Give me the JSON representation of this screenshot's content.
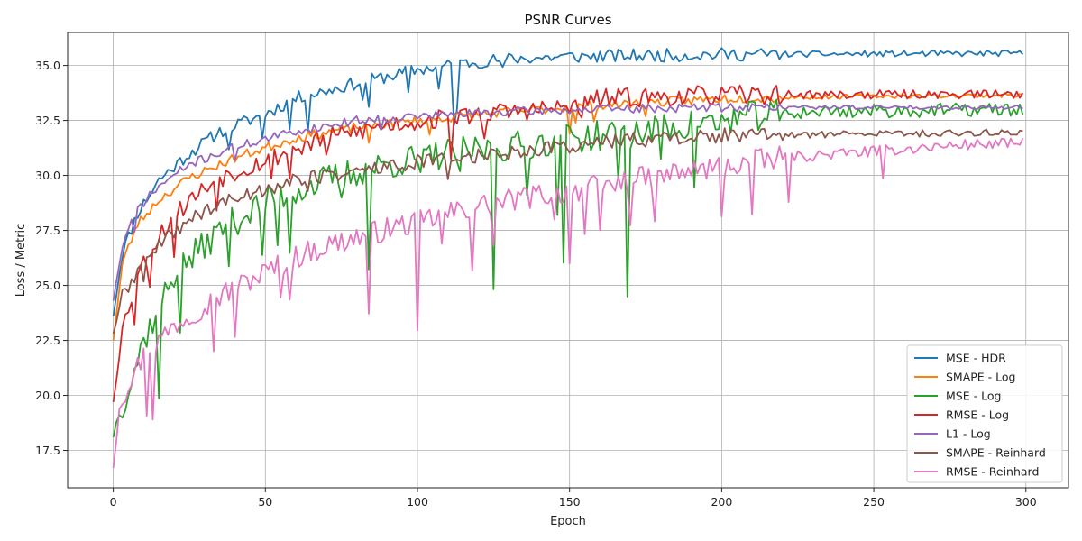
{
  "chart_data": {
    "type": "line",
    "title": "PSNR Curves",
    "xlabel": "Epoch",
    "ylabel": "Loss / Metric",
    "xlim": [
      -15,
      314
    ],
    "ylim": [
      15.8,
      36.5
    ],
    "xticks": [
      0,
      50,
      100,
      150,
      200,
      250,
      300
    ],
    "yticks": [
      17.5,
      20.0,
      22.5,
      25.0,
      27.5,
      30.0,
      32.5,
      35.0
    ],
    "grid": true,
    "legend_position": "lower-right",
    "x_range": [
      0,
      299
    ],
    "series": [
      {
        "name": "MSE - HDR",
        "color": "#1f77b4",
        "knots": [
          [
            0,
            23.6
          ],
          [
            3,
            26.5
          ],
          [
            8,
            28.3
          ],
          [
            15,
            29.8
          ],
          [
            25,
            31.0
          ],
          [
            35,
            32.0
          ],
          [
            50,
            32.8
          ],
          [
            60,
            33.5
          ],
          [
            80,
            34.2
          ],
          [
            100,
            34.8
          ],
          [
            115,
            35.1
          ],
          [
            130,
            35.3
          ],
          [
            150,
            35.4
          ],
          [
            200,
            35.5
          ],
          [
            299,
            35.55
          ]
        ],
        "noise": 0.3,
        "spikes": [
          [
            38,
            -1.2
          ],
          [
            49,
            -1.0
          ],
          [
            58,
            -1.2
          ],
          [
            64,
            -1.4
          ],
          [
            82,
            -1.0
          ],
          [
            84,
            -1.1
          ],
          [
            97,
            -1.0
          ],
          [
            107,
            -1.1
          ],
          [
            112,
            -2.8
          ],
          [
            113,
            -1.8
          ],
          [
            128,
            -0.6
          ]
        ],
        "seed": 11
      },
      {
        "name": "SMAPE - Log",
        "color": "#ff7f0e",
        "knots": [
          [
            0,
            22.5
          ],
          [
            3,
            26.0
          ],
          [
            8,
            27.8
          ],
          [
            15,
            28.9
          ],
          [
            25,
            29.9
          ],
          [
            40,
            30.8
          ],
          [
            60,
            31.7
          ],
          [
            80,
            32.2
          ],
          [
            100,
            32.5
          ],
          [
            130,
            32.9
          ],
          [
            150,
            33.1
          ],
          [
            200,
            33.5
          ],
          [
            250,
            33.6
          ],
          [
            299,
            33.65
          ]
        ],
        "noise": 0.22,
        "spikes": [
          [
            84,
            -1.0
          ],
          [
            104,
            -0.8
          ],
          [
            150,
            -1.0
          ],
          [
            152,
            -0.8
          ],
          [
            158,
            -0.5
          ],
          [
            175,
            -0.4
          ]
        ],
        "seed": 23
      },
      {
        "name": "MSE - Log",
        "color": "#2ca02c",
        "knots": [
          [
            0,
            18.1
          ],
          [
            2,
            19.3
          ],
          [
            5,
            20.3
          ],
          [
            10,
            22.5
          ],
          [
            20,
            25.5
          ],
          [
            35,
            27.5
          ],
          [
            50,
            28.8
          ],
          [
            70,
            29.8
          ],
          [
            90,
            30.5
          ],
          [
            110,
            31.0
          ],
          [
            130,
            31.3
          ],
          [
            150,
            31.7
          ],
          [
            170,
            31.9
          ],
          [
            190,
            32.3
          ],
          [
            210,
            32.7
          ],
          [
            230,
            32.9
          ],
          [
            299,
            33.0
          ]
        ],
        "noise": 0.7,
        "spikes": [
          [
            15,
            -4.5
          ],
          [
            22,
            -2.5
          ],
          [
            38,
            -1.5
          ],
          [
            49,
            -2.5
          ],
          [
            54,
            -2.0
          ],
          [
            58,
            -2.5
          ],
          [
            75,
            -1.5
          ],
          [
            84,
            -4.5
          ],
          [
            101,
            -1.2
          ],
          [
            114,
            -1.5
          ],
          [
            125,
            -6.0
          ],
          [
            136,
            -2.5
          ],
          [
            146,
            -4.0
          ],
          [
            148,
            -5.0
          ],
          [
            166,
            -1.5
          ],
          [
            169,
            -7.5
          ],
          [
            180,
            -1.0
          ],
          [
            191,
            -2.5
          ],
          [
            199,
            -0.6
          ]
        ],
        "seed": 37
      },
      {
        "name": "RMSE - Log",
        "color": "#d62728",
        "knots": [
          [
            0,
            19.7
          ],
          [
            3,
            23.0
          ],
          [
            8,
            25.5
          ],
          [
            15,
            27.3
          ],
          [
            25,
            28.9
          ],
          [
            35,
            29.9
          ],
          [
            50,
            30.7
          ],
          [
            70,
            31.7
          ],
          [
            90,
            32.3
          ],
          [
            110,
            32.6
          ],
          [
            130,
            32.9
          ],
          [
            150,
            33.1
          ],
          [
            160,
            33.5
          ],
          [
            200,
            33.65
          ],
          [
            299,
            33.7
          ]
        ],
        "noise": 0.45,
        "spikes": [
          [
            7,
            -1.5
          ],
          [
            12,
            -1.5
          ],
          [
            20,
            -1.5
          ],
          [
            34,
            -1.0
          ],
          [
            52,
            -1.0
          ],
          [
            58,
            -1.0
          ],
          [
            70,
            -0.8
          ],
          [
            111,
            -1.5
          ],
          [
            122,
            -0.8
          ],
          [
            154,
            -1.0
          ]
        ],
        "seed": 53
      },
      {
        "name": "L1 - Log",
        "color": "#9467bd",
        "knots": [
          [
            0,
            24.3
          ],
          [
            3,
            26.8
          ],
          [
            8,
            28.5
          ],
          [
            15,
            29.5
          ],
          [
            25,
            30.5
          ],
          [
            40,
            31.3
          ],
          [
            60,
            32.0
          ],
          [
            80,
            32.5
          ],
          [
            100,
            32.7
          ],
          [
            130,
            32.9
          ],
          [
            160,
            33.0
          ],
          [
            200,
            33.1
          ],
          [
            299,
            33.1
          ]
        ],
        "noise": 0.2,
        "spikes": [
          [
            7,
            -0.8
          ],
          [
            40,
            -0.5
          ],
          [
            88,
            -0.4
          ]
        ],
        "seed": 71
      },
      {
        "name": "SMAPE - Reinhard",
        "color": "#8c564b",
        "knots": [
          [
            0,
            22.8
          ],
          [
            3,
            24.5
          ],
          [
            10,
            26.0
          ],
          [
            20,
            27.5
          ],
          [
            30,
            28.4
          ],
          [
            45,
            29.2
          ],
          [
            60,
            29.8
          ],
          [
            80,
            30.2
          ],
          [
            100,
            30.6
          ],
          [
            120,
            30.9
          ],
          [
            140,
            31.2
          ],
          [
            160,
            31.5
          ],
          [
            180,
            31.7
          ],
          [
            200,
            31.8
          ],
          [
            250,
            31.9
          ],
          [
            299,
            31.95
          ]
        ],
        "noise": 0.35,
        "spikes": [
          [
            10,
            -0.6
          ],
          [
            64,
            -0.5
          ],
          [
            98,
            -0.5
          ],
          [
            110,
            -0.6
          ],
          [
            220,
            -0.3
          ]
        ],
        "seed": 89
      },
      {
        "name": "RMSE - Reinhard",
        "color": "#e377c2",
        "knots": [
          [
            0,
            16.7
          ],
          [
            2,
            19.5
          ],
          [
            5,
            20.6
          ],
          [
            10,
            21.8
          ],
          [
            20,
            23.2
          ],
          [
            30,
            24.1
          ],
          [
            40,
            24.9
          ],
          [
            50,
            25.6
          ],
          [
            60,
            26.3
          ],
          [
            70,
            26.8
          ],
          [
            80,
            27.2
          ],
          [
            100,
            27.9
          ],
          [
            120,
            28.6
          ],
          [
            140,
            29.1
          ],
          [
            160,
            29.5
          ],
          [
            180,
            30.0
          ],
          [
            200,
            30.4
          ],
          [
            220,
            30.8
          ],
          [
            240,
            31.0
          ],
          [
            260,
            31.2
          ],
          [
            280,
            31.4
          ],
          [
            299,
            31.45
          ]
        ],
        "noise": 0.55,
        "spikes": [
          [
            11,
            -2.5
          ],
          [
            13,
            -3.0
          ],
          [
            33,
            -2.0
          ],
          [
            40,
            -2.0
          ],
          [
            55,
            -1.5
          ],
          [
            58,
            -2.0
          ],
          [
            84,
            -4.0
          ],
          [
            100,
            -5.5
          ],
          [
            108,
            -1.5
          ],
          [
            118,
            -2.5
          ],
          [
            125,
            -2.0
          ],
          [
            145,
            -1.5
          ],
          [
            150,
            -3.0
          ],
          [
            155,
            -2.0
          ],
          [
            160,
            -2.5
          ],
          [
            170,
            -1.5
          ],
          [
            178,
            -2.5
          ],
          [
            200,
            -2.5
          ],
          [
            210,
            -2.2
          ],
          [
            222,
            -1.8
          ],
          [
            253,
            -1.5
          ]
        ],
        "seed": 97
      }
    ]
  }
}
